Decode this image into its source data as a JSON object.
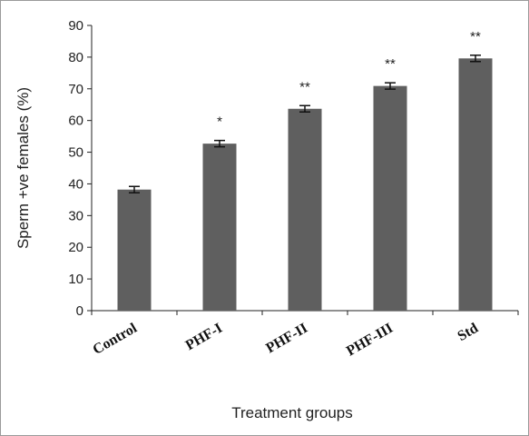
{
  "chart_data": {
    "type": "bar",
    "categories": [
      "Control",
      "PHF-I",
      "PHF-II",
      "PHF-III",
      "Std"
    ],
    "values": [
      38.2,
      52.7,
      63.7,
      70.9,
      79.6
    ],
    "errors": [
      1.0,
      1.0,
      1.0,
      1.0,
      1.0
    ],
    "annotations": [
      "",
      "*",
      "**",
      "**",
      "**"
    ],
    "xlabel": "Treatment groups",
    "ylabel": "Sperm +ve females  (%)",
    "ylim": [
      0,
      90
    ],
    "yticks": [
      0,
      10,
      20,
      30,
      40,
      50,
      60,
      70,
      80,
      90
    ],
    "grid": false,
    "bar_color": "#5f5f5f"
  }
}
